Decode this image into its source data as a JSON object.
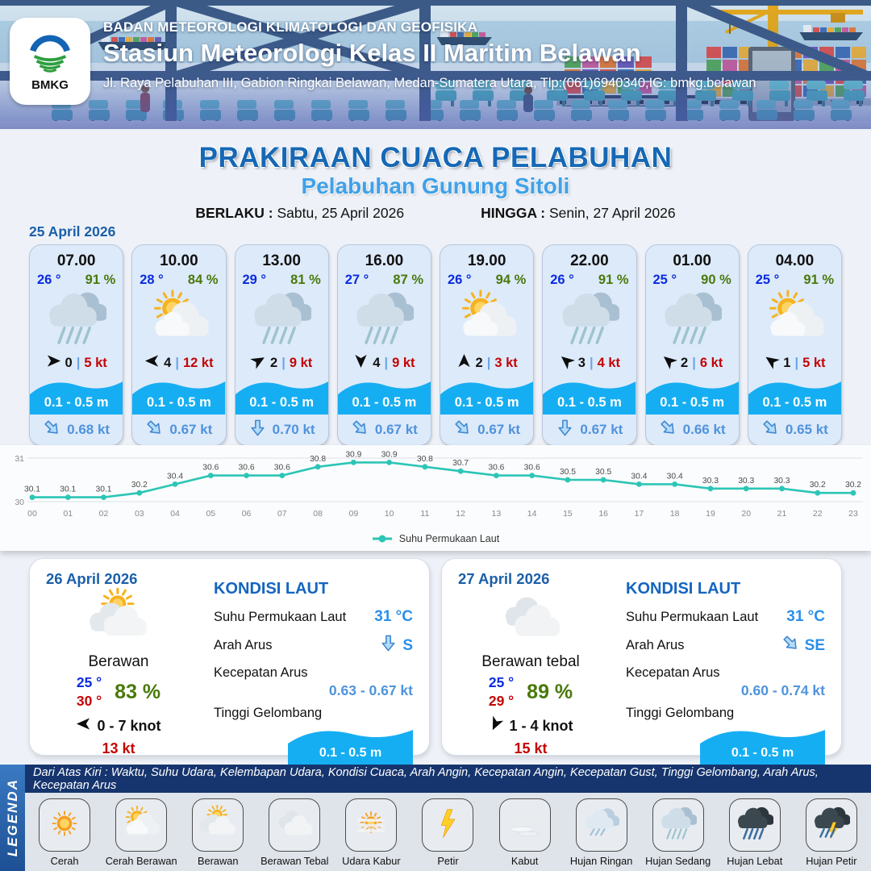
{
  "header": {
    "agency": "BADAN METEOROLOGI KLIMATOLOGI DAN GEOFISIKA",
    "station": "Stasiun Meteorologi Kelas II Maritim Belawan",
    "address": "Jl. Raya Pelabuhan III, Gabion Ringkai Belawan, Medan-Sumatera Utara, Tlp:(061)6940340,IG: bmkg.belawan",
    "logo_text": "BMKG"
  },
  "title": {
    "main": "PRAKIRAAN CUACA PELABUHAN",
    "port": "Pelabuhan Gunung Sitoli",
    "valid_from_label": "BERLAKU :",
    "valid_from": "Sabtu, 25 April 2026",
    "valid_to_label": "HINGGA :",
    "valid_to": "Senin, 27 April 2026"
  },
  "forecast_date": "25 April 2026",
  "hourly": [
    {
      "time": "07.00",
      "temp": "26 °",
      "rh": "91 %",
      "icon": "hujan-sedang",
      "wind_deg": 0,
      "wind": "0",
      "sep": "|",
      "gust": "5 kt",
      "wave": "0.1 - 0.5 m",
      "current_dir": "SE",
      "current": "0.68 kt"
    },
    {
      "time": "10.00",
      "temp": "28 °",
      "rh": "84 %",
      "icon": "cerah-berawan",
      "wind_deg": 180,
      "wind": "4",
      "sep": "|",
      "gust": "12 kt",
      "wave": "0.1 - 0.5 m",
      "current_dir": "SE",
      "current": "0.67 kt"
    },
    {
      "time": "13.00",
      "temp": "29 °",
      "rh": "81 %",
      "icon": "hujan-sedang",
      "wind_deg": -30,
      "wind": "2",
      "sep": "|",
      "gust": "9 kt",
      "wave": "0.1 - 0.5 m",
      "current_dir": "S",
      "current": "0.70 kt"
    },
    {
      "time": "16.00",
      "temp": "27 °",
      "rh": "87 %",
      "icon": "hujan-sedang",
      "wind_deg": 90,
      "wind": "4",
      "sep": "|",
      "gust": "9 kt",
      "wave": "0.1 - 0.5 m",
      "current_dir": "SE",
      "current": "0.67 kt"
    },
    {
      "time": "19.00",
      "temp": "26 °",
      "rh": "94 %",
      "icon": "cerah-berawan",
      "wind_deg": -90,
      "wind": "2",
      "sep": "|",
      "gust": "3 kt",
      "wave": "0.1 - 0.5 m",
      "current_dir": "SE",
      "current": "0.67 kt"
    },
    {
      "time": "22.00",
      "temp": "26 °",
      "rh": "91 %",
      "icon": "hujan-sedang",
      "wind_deg": -140,
      "wind": "3",
      "sep": "|",
      "gust": "4 kt",
      "wave": "0.1 - 0.5 m",
      "current_dir": "S",
      "current": "0.67 kt"
    },
    {
      "time": "01.00",
      "temp": "25 °",
      "rh": "90 %",
      "icon": "hujan-sedang",
      "wind_deg": -140,
      "wind": "2",
      "sep": "|",
      "gust": "6 kt",
      "wave": "0.1 - 0.5 m",
      "current_dir": "SE",
      "current": "0.66 kt"
    },
    {
      "time": "04.00",
      "temp": "25 °",
      "rh": "91 %",
      "icon": "cerah-berawan",
      "wind_deg": -145,
      "wind": "1",
      "sep": "|",
      "gust": "5 kt",
      "wave": "0.1 - 0.5 m",
      "current_dir": "SE",
      "current": "0.65 kt"
    }
  ],
  "chart_data": {
    "type": "line",
    "title": "",
    "x": [
      "00",
      "01",
      "02",
      "03",
      "04",
      "05",
      "06",
      "07",
      "08",
      "09",
      "10",
      "11",
      "12",
      "13",
      "14",
      "15",
      "16",
      "17",
      "18",
      "19",
      "20",
      "21",
      "22",
      "23"
    ],
    "series": [
      {
        "name": "Suhu Permukaan Laut",
        "color": "#2cc5b6",
        "values": [
          30.1,
          30.1,
          30.1,
          30.2,
          30.4,
          30.6,
          30.6,
          30.6,
          30.8,
          30.9,
          30.9,
          30.8,
          30.7,
          30.6,
          30.6,
          30.5,
          30.5,
          30.4,
          30.4,
          30.3,
          30.3,
          30.3,
          30.2,
          30.2
        ]
      }
    ],
    "ylim": [
      30,
      31
    ],
    "yticks": [
      30,
      31
    ],
    "grid": true,
    "legend_position": "bottom"
  },
  "days": [
    {
      "date": "26 April 2026",
      "icon": "berawan",
      "condition": "Berawan",
      "temp_min": "25 °",
      "temp_max": "30 °",
      "humidity": "83 %",
      "wind_deg": 180,
      "wind_range": "0 - 7 knot",
      "gust": "13 kt",
      "sea": {
        "heading": "KONDISI LAUT",
        "sst_label": "Suhu Permukaan Laut",
        "sst": "31 °C",
        "dir_label": "Arah Arus",
        "dir": "S",
        "speed_label": "Kecepatan Arus",
        "speed": "0.63 - 0.67 kt",
        "wave_label": "Tinggi Gelombang",
        "wave": "0.1 - 0.5 m"
      }
    },
    {
      "date": "27 April 2026",
      "icon": "berawan-tebal",
      "condition": "Berawan tebal",
      "temp_min": "25 °",
      "temp_max": "29 °",
      "humidity": "89 %",
      "wind_deg": 115,
      "wind_range": "1 - 4 knot",
      "gust": "15 kt",
      "sea": {
        "heading": "KONDISI LAUT",
        "sst_label": "Suhu Permukaan Laut",
        "sst": "31 °C",
        "dir_label": "Arah Arus",
        "dir": "SE",
        "speed_label": "Kecepatan Arus",
        "speed": "0.60 - 0.74 kt",
        "wave_label": "Tinggi Gelombang",
        "wave": "0.1 - 0.5 m"
      }
    }
  ],
  "legend": {
    "title": "LEGENDA",
    "note": "Dari Atas Kiri : Waktu, Suhu Udara, Kelembapan Udara, Kondisi Cuaca, Arah Angin, Kecepatan Angin, Kecepatan Gust, Tinggi Gelombang, Arah Arus, Kecepatan Arus",
    "items": [
      {
        "label": "Cerah",
        "icon": "cerah"
      },
      {
        "label": "Cerah Berawan",
        "icon": "cerah-berawan"
      },
      {
        "label": "Berawan",
        "icon": "berawan"
      },
      {
        "label": "Berawan Tebal",
        "icon": "berawan-tebal"
      },
      {
        "label": "Udara Kabur",
        "icon": "udara-kabur"
      },
      {
        "label": "Petir",
        "icon": "petir"
      },
      {
        "label": "Kabut",
        "icon": "kabut"
      },
      {
        "label": "Hujan Ringan",
        "icon": "hujan-ringan"
      },
      {
        "label": "Hujan Sedang",
        "icon": "hujan-sedang"
      },
      {
        "label": "Hujan Lebat",
        "icon": "hujan-lebat"
      },
      {
        "label": "Hujan Petir",
        "icon": "hujan-petir"
      }
    ]
  },
  "colors": {
    "accent_blue": "#1668b5",
    "subtitle_blue": "#3fa1e8",
    "temp_blue": "#0a2ce0",
    "humidity_green": "#49790a",
    "gust_red": "#c40505",
    "wave_blue": "#16aef2",
    "current_blue": "#4f93dd",
    "chart_teal": "#2cc5b6",
    "legend_navy": "#16356e"
  }
}
